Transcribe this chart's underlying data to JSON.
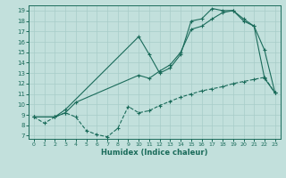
{
  "xlabel": "Humidex (Indice chaleur)",
  "bg_color": "#c2e0dc",
  "line_color": "#1a6b5a",
  "grid_color": "#a8ccc8",
  "xlim": [
    -0.5,
    23.5
  ],
  "ylim": [
    6.7,
    19.5
  ],
  "xticks": [
    0,
    1,
    2,
    3,
    4,
    5,
    6,
    7,
    8,
    9,
    10,
    11,
    12,
    13,
    14,
    15,
    16,
    17,
    18,
    19,
    20,
    21,
    22,
    23
  ],
  "yticks": [
    7,
    8,
    9,
    10,
    11,
    12,
    13,
    14,
    15,
    16,
    17,
    18,
    19
  ],
  "line1_x": [
    0,
    1,
    2,
    3,
    4,
    5,
    6,
    7,
    8,
    9,
    10,
    11,
    12,
    13,
    14,
    15,
    16,
    17,
    18,
    19,
    20,
    21,
    22,
    23
  ],
  "line1_y": [
    8.8,
    8.2,
    8.8,
    9.2,
    8.8,
    7.5,
    7.1,
    6.9,
    7.7,
    9.8,
    9.2,
    9.4,
    9.9,
    10.3,
    10.7,
    11.0,
    11.3,
    11.5,
    11.7,
    12.0,
    12.2,
    12.4,
    12.6,
    11.1
  ],
  "line2_x": [
    0,
    2,
    3,
    4,
    10,
    11,
    12,
    13,
    14,
    15,
    16,
    17,
    18,
    19,
    20,
    21,
    22,
    23
  ],
  "line2_y": [
    8.8,
    8.8,
    9.2,
    10.2,
    12.8,
    12.5,
    13.2,
    13.8,
    15.0,
    17.2,
    17.5,
    18.2,
    18.8,
    19.0,
    18.2,
    17.5,
    12.5,
    11.1
  ],
  "line3_x": [
    0,
    2,
    3,
    10,
    11,
    12,
    13,
    14,
    15,
    16,
    17,
    18,
    19,
    20,
    21,
    22,
    23
  ],
  "line3_y": [
    8.8,
    8.8,
    9.5,
    16.5,
    14.8,
    13.0,
    13.5,
    14.8,
    18.0,
    18.2,
    19.2,
    19.0,
    19.0,
    18.0,
    17.5,
    15.2,
    11.1
  ]
}
